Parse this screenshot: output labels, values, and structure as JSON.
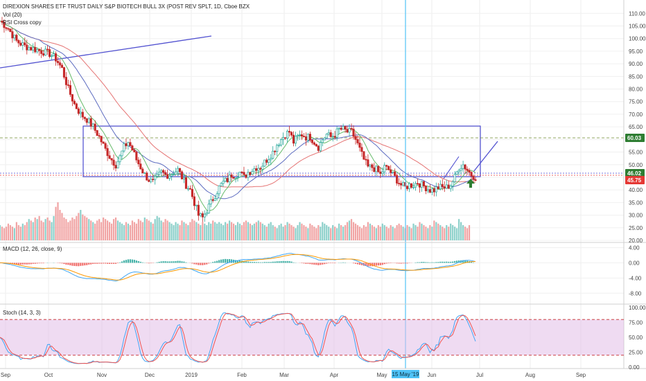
{
  "chart_data": {
    "type": "candlestick",
    "title": "DIREXION SHARES ETF TRUST DAILY S&P BIOTECH BULL 3X (POST REV SPLT, 1D, Cboe BZX",
    "indicator_labels": [
      "Vol (20)",
      "RSI Cross copy"
    ],
    "x_months": [
      "Sep",
      "Oct",
      "Nov",
      "Dec",
      "2019",
      "Feb",
      "Mar",
      "Apr",
      "May",
      "Jun",
      "Jul",
      "Aug",
      "Sep"
    ],
    "cursor_date": "15 May '19",
    "price_axis": {
      "ticks": [
        "110.00",
        "105.00",
        "100.00",
        "95.00",
        "90.00",
        "85.00",
        "80.00",
        "75.00",
        "70.00",
        "65.00",
        "60.00",
        "55.00",
        "50.00",
        "45.00",
        "40.00",
        "35.00",
        "30.00",
        "25.00",
        "20.00"
      ],
      "ylim": [
        20,
        112
      ]
    },
    "price_badges": [
      {
        "label": "60.03",
        "value": 60.03,
        "color": "#2e7d32"
      },
      {
        "label": "46.02",
        "value": 46.02,
        "color": "#2e7d32"
      },
      {
        "label": "45.75",
        "value": 45.75,
        "color": "#e53935"
      }
    ],
    "close_path": [
      [
        0,
        107
      ],
      [
        4,
        104
      ],
      [
        8,
        99
      ],
      [
        12,
        97
      ],
      [
        16,
        96
      ],
      [
        20,
        95
      ],
      [
        24,
        94
      ],
      [
        27,
        92
      ],
      [
        30,
        88
      ],
      [
        33,
        80
      ],
      [
        36,
        74
      ],
      [
        39,
        70
      ],
      [
        42,
        68
      ],
      [
        45,
        65
      ],
      [
        48,
        61
      ],
      [
        51,
        56
      ],
      [
        54,
        52
      ],
      [
        56,
        50
      ],
      [
        58,
        53
      ],
      [
        60,
        57
      ],
      [
        62,
        59
      ],
      [
        64,
        56
      ],
      [
        66,
        52
      ],
      [
        68,
        49
      ],
      [
        70,
        46
      ],
      [
        72,
        44
      ],
      [
        74,
        43
      ],
      [
        76,
        45
      ],
      [
        78,
        47
      ],
      [
        80,
        46
      ],
      [
        82,
        46
      ],
      [
        84,
        47
      ],
      [
        86,
        48
      ],
      [
        88,
        45
      ],
      [
        90,
        42
      ],
      [
        92,
        40
      ],
      [
        94,
        35
      ],
      [
        96,
        30
      ],
      [
        98,
        29
      ],
      [
        100,
        32
      ],
      [
        102,
        35
      ],
      [
        104,
        38
      ],
      [
        106,
        41
      ],
      [
        108,
        43
      ],
      [
        110,
        44
      ],
      [
        112,
        46
      ],
      [
        114,
        46
      ],
      [
        116,
        47
      ],
      [
        118,
        45
      ],
      [
        120,
        47
      ],
      [
        122,
        48
      ],
      [
        124,
        49
      ],
      [
        126,
        49
      ],
      [
        128,
        51
      ],
      [
        130,
        53
      ],
      [
        132,
        55
      ],
      [
        134,
        58
      ],
      [
        136,
        60
      ],
      [
        138,
        62
      ],
      [
        140,
        63
      ],
      [
        142,
        59
      ],
      [
        144,
        61
      ],
      [
        146,
        62
      ],
      [
        148,
        61
      ],
      [
        150,
        61
      ],
      [
        152,
        59
      ],
      [
        154,
        57
      ],
      [
        156,
        60
      ],
      [
        158,
        62
      ],
      [
        160,
        61
      ],
      [
        162,
        62
      ],
      [
        164,
        64
      ],
      [
        166,
        64
      ],
      [
        168,
        63
      ],
      [
        170,
        63
      ],
      [
        172,
        60
      ],
      [
        174,
        56
      ],
      [
        176,
        52
      ],
      [
        178,
        49
      ],
      [
        180,
        49
      ],
      [
        182,
        48
      ],
      [
        184,
        46
      ],
      [
        186,
        49
      ],
      [
        188,
        48
      ],
      [
        190,
        46
      ],
      [
        192,
        44
      ],
      [
        194,
        42
      ],
      [
        196,
        41
      ],
      [
        198,
        42
      ],
      [
        200,
        42
      ],
      [
        202,
        43
      ],
      [
        204,
        42
      ],
      [
        206,
        41
      ],
      [
        208,
        40
      ],
      [
        210,
        40
      ],
      [
        212,
        41
      ],
      [
        214,
        41
      ],
      [
        216,
        41
      ],
      [
        218,
        42
      ],
      [
        220,
        45
      ],
      [
        222,
        49
      ],
      [
        224,
        50
      ],
      [
        226,
        48
      ],
      [
        228,
        46
      ],
      [
        230,
        45
      ]
    ],
    "volume_series": [
      10,
      9,
      8,
      9,
      11,
      10,
      9,
      8,
      12,
      10,
      9,
      11,
      10,
      12,
      14,
      13,
      12,
      15,
      14,
      16,
      13,
      12,
      14,
      15,
      13,
      12,
      16,
      22,
      25,
      20,
      18,
      15,
      14,
      12,
      13,
      15,
      14,
      16,
      18,
      20,
      17,
      16,
      15,
      14,
      13,
      12,
      11,
      13,
      14,
      12,
      15,
      14,
      13,
      12,
      11,
      14,
      15,
      13,
      12,
      11,
      10,
      12,
      11,
      10,
      13,
      12,
      11,
      14,
      13,
      12,
      15,
      14,
      13,
      12,
      11,
      14,
      16,
      15,
      13,
      12,
      14,
      13,
      12,
      11,
      10,
      12,
      11,
      10,
      13,
      12,
      11,
      10,
      12,
      14,
      13,
      12,
      11,
      10,
      12,
      11,
      10,
      12,
      11,
      13,
      12,
      11,
      12,
      11,
      10,
      12,
      11,
      13,
      12,
      11,
      10,
      12,
      11,
      10,
      12,
      13,
      12,
      11,
      10,
      11,
      12,
      13,
      12,
      11,
      10,
      9,
      11,
      12,
      10,
      9,
      8,
      10,
      11,
      9,
      10,
      12,
      11,
      10,
      9,
      8,
      10,
      12,
      11,
      10,
      9,
      8,
      11,
      10,
      9,
      8,
      10,
      9,
      12,
      11,
      10,
      9,
      8,
      10,
      9,
      8,
      11,
      10,
      9,
      10,
      12,
      13,
      14,
      12,
      11,
      10,
      9,
      8,
      10,
      9,
      12,
      11,
      10,
      9,
      8,
      10,
      9,
      11,
      10,
      9,
      8,
      10,
      9,
      8,
      10,
      11,
      10,
      9,
      8,
      10,
      9,
      8,
      11,
      10,
      9,
      12,
      11,
      10,
      9,
      8,
      10,
      9,
      13,
      12,
      11,
      10,
      9,
      8,
      10,
      9,
      11,
      10,
      9,
      8,
      14,
      12,
      10,
      9,
      8,
      10
    ],
    "macd": {
      "label": "MACD (12, 26, close, 9)",
      "ticks": [
        "4.00",
        "0.00",
        "-4.00",
        "-8.00"
      ],
      "ylim": [
        -10.5,
        5
      ]
    },
    "stoch": {
      "label": "Stoch (14, 3, 3)",
      "ticks": [
        "100.00",
        "75.00",
        "50.00",
        "25.00",
        "0.00"
      ],
      "ylim": [
        0,
        100
      ],
      "bands": [
        20,
        80
      ]
    }
  }
}
